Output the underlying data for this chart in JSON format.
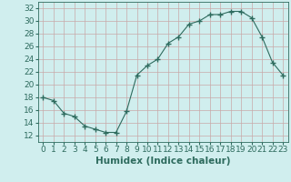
{
  "x": [
    0,
    1,
    2,
    3,
    4,
    5,
    6,
    7,
    8,
    9,
    10,
    11,
    12,
    13,
    14,
    15,
    16,
    17,
    18,
    19,
    20,
    21,
    22,
    23
  ],
  "y": [
    18,
    17.5,
    15.5,
    15,
    13.5,
    13,
    12.5,
    12.5,
    15.8,
    21.5,
    23,
    24,
    26.5,
    27.5,
    29.5,
    30,
    31,
    31,
    31.5,
    31.5,
    30.5,
    27.5,
    23.5,
    21.5
  ],
  "line_color": "#2e6b5e",
  "marker": "+",
  "marker_size": 5,
  "bg_color": "#d0eeee",
  "grid_color": "#c8a8a8",
  "xlabel": "Humidex (Indice chaleur)",
  "xlim": [
    -0.5,
    23.5
  ],
  "ylim": [
    11,
    33
  ],
  "yticks": [
    12,
    14,
    16,
    18,
    20,
    22,
    24,
    26,
    28,
    30,
    32
  ],
  "xticks": [
    0,
    1,
    2,
    3,
    4,
    5,
    6,
    7,
    8,
    9,
    10,
    11,
    12,
    13,
    14,
    15,
    16,
    17,
    18,
    19,
    20,
    21,
    22,
    23
  ],
  "xlabel_fontsize": 7.5,
  "tick_fontsize": 6.5,
  "fig_width": 3.2,
  "fig_height": 2.0,
  "dpi": 100
}
